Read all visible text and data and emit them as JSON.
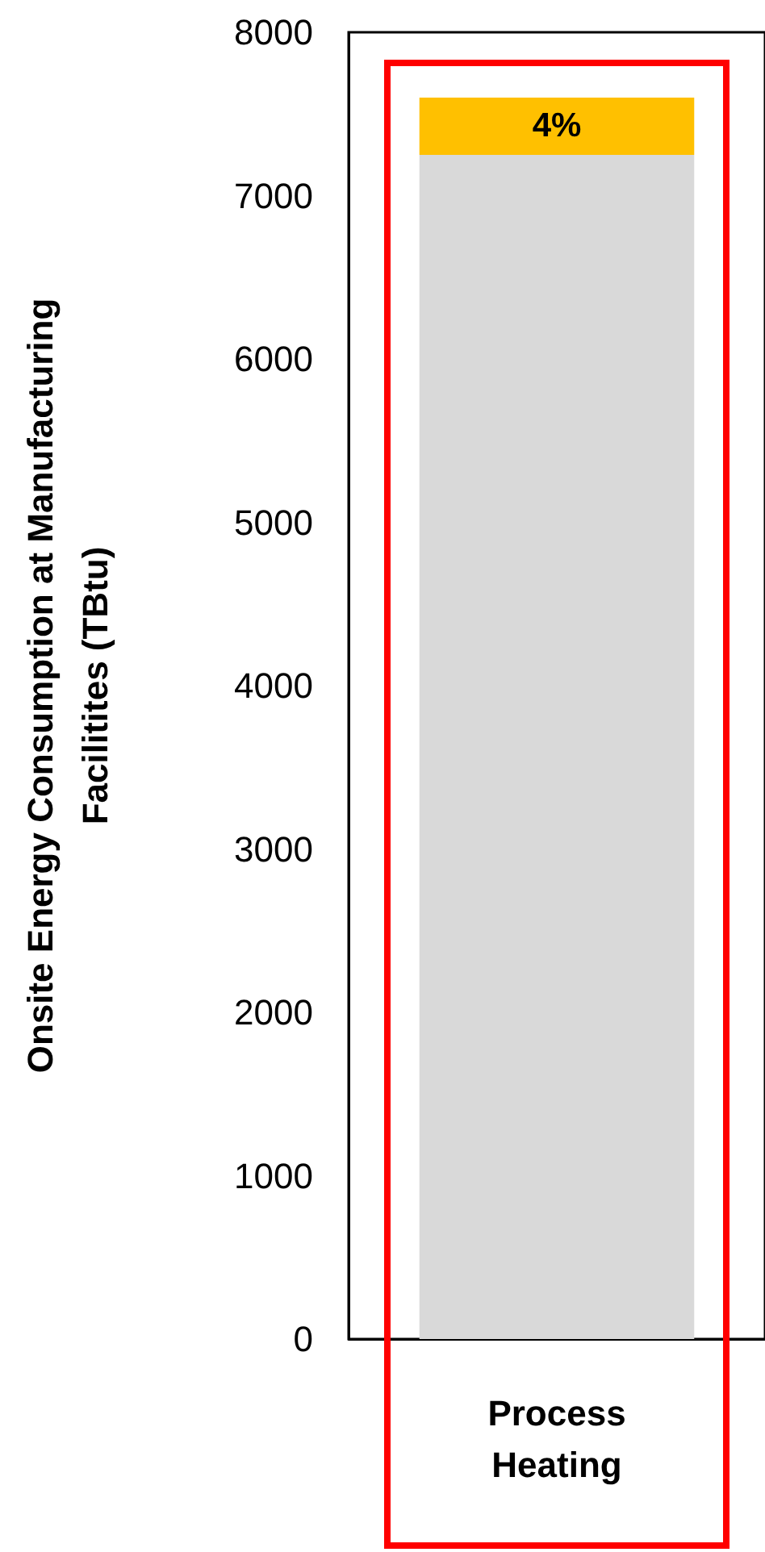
{
  "chart_data": {
    "type": "bar",
    "ylabel": "Onsite Energy Consumption at Manufacturing Facilitites (TBtu)",
    "categories": [
      "Process Heating"
    ],
    "stacked": true,
    "series": [
      {
        "color": "#d9d9d9",
        "values": [
          7250
        ]
      },
      {
        "color": "#ffc000",
        "values": [
          350
        ]
      }
    ],
    "annotations": [
      "4%"
    ],
    "ylim": [
      0,
      8000
    ],
    "yticks": [
      0,
      1000,
      2000,
      3000,
      4000,
      5000,
      6000,
      7000,
      8000
    ],
    "grid": false
  }
}
